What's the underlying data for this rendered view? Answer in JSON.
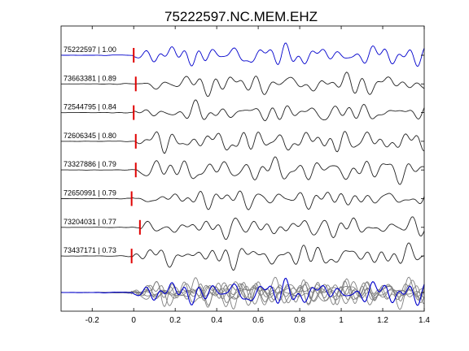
{
  "chart_data": {
    "type": "line",
    "title": "75222597.NC.MEM.EHZ",
    "xlabel": "",
    "ylabel": "",
    "xlim": [
      -0.35,
      1.4
    ],
    "x_ticks": [
      -0.2,
      0,
      0.2,
      0.4,
      0.6,
      0.8,
      1,
      1.2,
      1.4
    ],
    "x_tick_labels": [
      "-0.2",
      "0",
      "0.2",
      "0.4",
      "0.6",
      "0.8",
      "1",
      "1.2",
      "1.4"
    ],
    "grid": false,
    "legend": "none",
    "colors": {
      "reference": "#0000cc",
      "trace": "#222222",
      "pick": "#e00000",
      "stack": "#808080",
      "axes": "#000000"
    },
    "series": [
      {
        "label": "75222597 | 1.00",
        "id": "75222597",
        "cc": 1.0,
        "pick_time": 0.0,
        "color": "reference"
      },
      {
        "label": "73663381 | 0.89",
        "id": "73663381",
        "cc": 0.89,
        "pick_time": 0.01,
        "color": "trace"
      },
      {
        "label": "72544795 | 0.84",
        "id": "72544795",
        "cc": 0.84,
        "pick_time": 0.0,
        "color": "trace"
      },
      {
        "label": "72606345 | 0.80",
        "id": "72606345",
        "cc": 0.8,
        "pick_time": 0.01,
        "color": "trace"
      },
      {
        "label": "73327886 | 0.79",
        "id": "73327886",
        "cc": 0.79,
        "pick_time": 0.01,
        "color": "trace"
      },
      {
        "label": "72650991 | 0.79",
        "id": "72650991",
        "cc": 0.79,
        "pick_time": -0.01,
        "color": "trace"
      },
      {
        "label": "73204031 | 0.77",
        "id": "73204031",
        "cc": 0.77,
        "pick_time": 0.03,
        "color": "trace"
      },
      {
        "label": "73437171 | 0.73",
        "id": "73437171",
        "cc": 0.73,
        "pick_time": -0.01,
        "color": "trace"
      }
    ],
    "overlay": {
      "description": "all traces overlaid",
      "position": "bottom"
    }
  }
}
